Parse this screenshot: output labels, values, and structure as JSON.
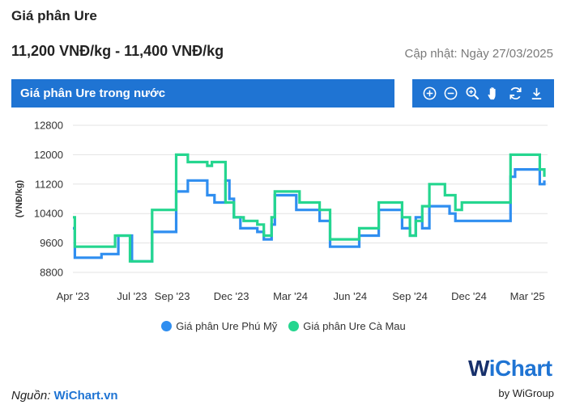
{
  "header": {
    "title": "Giá phân Ure",
    "price_range": "11,200 VNĐ/kg - 11,400 VNĐ/kg",
    "updated": "Cập nhật: Ngày 27/03/2025"
  },
  "chart_panel": {
    "title": "Giá phân Ure trong nước",
    "toolbar": [
      "zoom-in-icon",
      "zoom-out-icon",
      "magnify-icon",
      "pan-hand-icon",
      "reset-icon",
      "download-icon"
    ]
  },
  "colors": {
    "accent": "#1f74d3",
    "series1": "#2f8ef0",
    "series2": "#25d68f"
  },
  "chart_data": {
    "type": "line",
    "title": "",
    "ylabel": "(VNĐ/kg)",
    "xlabel": "",
    "ylim": [
      8800,
      12800
    ],
    "yticks": [
      8800,
      9600,
      10400,
      11200,
      12000,
      12800
    ],
    "xlim": [
      "2023-04-01",
      "2025-04-01"
    ],
    "xticks": [
      {
        "date": "2023-04-01",
        "label": "Apr '23"
      },
      {
        "date": "2023-07-01",
        "label": "Jul '23"
      },
      {
        "date": "2023-09-01",
        "label": "Sep '23"
      },
      {
        "date": "2023-12-01",
        "label": "Dec '23"
      },
      {
        "date": "2024-03-01",
        "label": "Mar '24"
      },
      {
        "date": "2024-06-01",
        "label": "Jun '24"
      },
      {
        "date": "2024-09-01",
        "label": "Sep '24"
      },
      {
        "date": "2024-12-01",
        "label": "Dec '24"
      },
      {
        "date": "2025-03-01",
        "label": "Mar '25"
      }
    ],
    "grid": true,
    "legend_position": "bottom",
    "step": true,
    "series": [
      {
        "name": "Giá phân Ure Phú Mỹ",
        "points": [
          [
            "2023-04-01",
            10000
          ],
          [
            "2023-04-04",
            9200
          ],
          [
            "2023-05-15",
            9300
          ],
          [
            "2023-06-10",
            9800
          ],
          [
            "2023-07-01",
            9100
          ],
          [
            "2023-08-01",
            9900
          ],
          [
            "2023-09-07",
            11000
          ],
          [
            "2023-09-25",
            11300
          ],
          [
            "2023-10-25",
            10900
          ],
          [
            "2023-11-05",
            10700
          ],
          [
            "2023-11-22",
            11300
          ],
          [
            "2023-11-28",
            10800
          ],
          [
            "2023-12-05",
            10300
          ],
          [
            "2023-12-15",
            10000
          ],
          [
            "2024-01-10",
            9900
          ],
          [
            "2024-01-20",
            9700
          ],
          [
            "2024-02-01",
            10100
          ],
          [
            "2024-02-06",
            10900
          ],
          [
            "2024-03-10",
            10500
          ],
          [
            "2024-04-15",
            10200
          ],
          [
            "2024-05-01",
            9500
          ],
          [
            "2024-06-15",
            9800
          ],
          [
            "2024-07-15",
            10500
          ],
          [
            "2024-08-20",
            10000
          ],
          [
            "2024-09-01",
            9800
          ],
          [
            "2024-09-10",
            10300
          ],
          [
            "2024-09-20",
            10000
          ],
          [
            "2024-10-01",
            10600
          ],
          [
            "2024-11-01",
            10400
          ],
          [
            "2024-11-10",
            10200
          ],
          [
            "2025-02-03",
            11400
          ],
          [
            "2025-02-10",
            11600
          ],
          [
            "2025-03-20",
            11200
          ],
          [
            "2025-03-27",
            11300
          ]
        ]
      },
      {
        "name": "Giá phân Ure Cà Mau",
        "points": [
          [
            "2023-04-01",
            10300
          ],
          [
            "2023-04-04",
            9500
          ],
          [
            "2023-06-05",
            9800
          ],
          [
            "2023-06-28",
            9100
          ],
          [
            "2023-08-01",
            10500
          ],
          [
            "2023-09-07",
            12000
          ],
          [
            "2023-09-25",
            11800
          ],
          [
            "2023-10-25",
            11700
          ],
          [
            "2023-11-01",
            11800
          ],
          [
            "2023-11-22",
            10700
          ],
          [
            "2023-12-05",
            10300
          ],
          [
            "2023-12-20",
            10200
          ],
          [
            "2024-01-10",
            10100
          ],
          [
            "2024-01-20",
            9800
          ],
          [
            "2024-02-01",
            10300
          ],
          [
            "2024-02-06",
            11000
          ],
          [
            "2024-03-15",
            10700
          ],
          [
            "2024-04-15",
            10500
          ],
          [
            "2024-05-01",
            9700
          ],
          [
            "2024-06-15",
            10000
          ],
          [
            "2024-07-15",
            10700
          ],
          [
            "2024-08-20",
            10300
          ],
          [
            "2024-09-01",
            9800
          ],
          [
            "2024-09-10",
            10200
          ],
          [
            "2024-09-20",
            10600
          ],
          [
            "2024-10-01",
            11200
          ],
          [
            "2024-10-25",
            10900
          ],
          [
            "2024-11-10",
            10500
          ],
          [
            "2024-11-20",
            10700
          ],
          [
            "2025-02-03",
            12000
          ],
          [
            "2025-03-20",
            11600
          ],
          [
            "2025-03-27",
            11400
          ]
        ]
      }
    ]
  },
  "legend": [
    "Giá phân Ure Phú Mỹ",
    "Giá phân Ure Cà Mau"
  ],
  "footer": {
    "source_label": "Nguồn:",
    "source_name": "WiChart.vn",
    "brand_w": "W",
    "brand_rest": "iChart",
    "brand_sub": "by WiGroup"
  }
}
